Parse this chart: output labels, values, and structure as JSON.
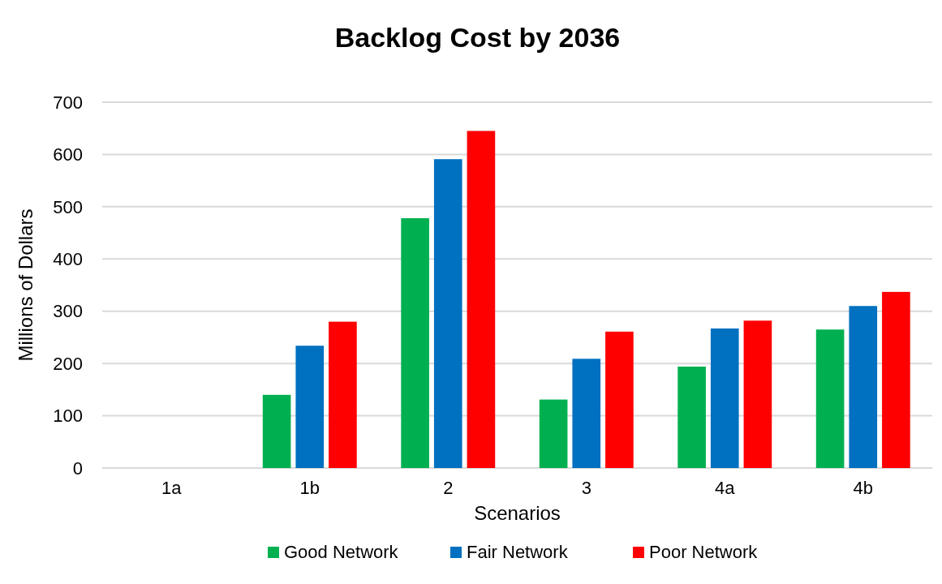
{
  "chart_data": {
    "type": "bar",
    "title": "Backlog Cost by 2036",
    "xlabel": "Scenarios",
    "ylabel": "Millions of Dollars",
    "categories": [
      "1a",
      "1b",
      "2",
      "3",
      "4a",
      "4b"
    ],
    "series": [
      {
        "name": "Good Network",
        "color": "#00b050",
        "values": [
          0,
          140,
          478,
          131,
          194,
          265
        ]
      },
      {
        "name": "Fair Network",
        "color": "#0070c0",
        "values": [
          0,
          234,
          591,
          209,
          267,
          310
        ]
      },
      {
        "name": "Poor Network",
        "color": "#ff0000",
        "values": [
          0,
          280,
          645,
          261,
          282,
          337
        ]
      }
    ],
    "ylim": [
      0,
      700
    ],
    "yticks": [
      0,
      100,
      200,
      300,
      400,
      500,
      600,
      700
    ],
    "grid": "y",
    "legend": "bottom"
  }
}
